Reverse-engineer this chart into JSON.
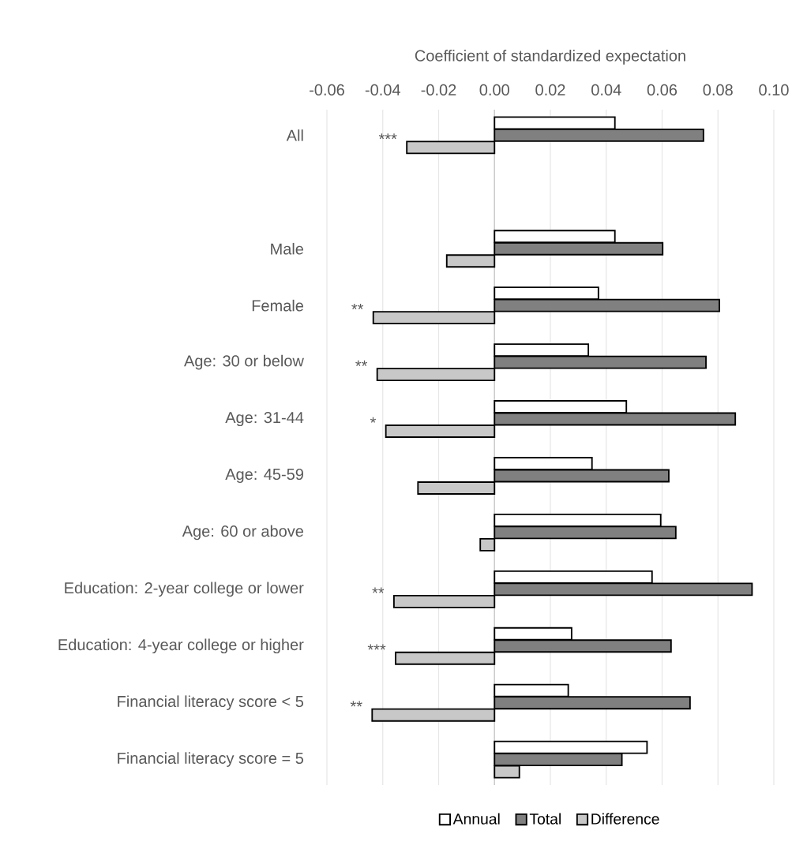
{
  "chart_data": {
    "type": "bar",
    "orientation": "horizontal",
    "xlabel": "Coefficient of standardized expectation",
    "categories": [
      "All",
      null,
      "Male",
      "Female",
      "Age: 30 or below",
      "Age: 31-44",
      "Age: 45-59",
      "Age: 60 or above",
      "Education: 2-year college or lower",
      "Education: 4-year college or higher",
      "Financial literacy score < 5",
      "Financial literacy score = 5"
    ],
    "series": [
      {
        "name": "Annual",
        "color": "#ffffff",
        "values": [
          0.0431,
          null,
          0.0431,
          0.0372,
          0.0336,
          0.0472,
          0.0349,
          0.0595,
          0.0564,
          0.0276,
          0.0264,
          0.0546
        ]
      },
      {
        "name": "Total",
        "color": "#808080",
        "values": [
          0.0748,
          null,
          0.0602,
          0.0805,
          0.0757,
          0.0862,
          0.0624,
          0.0649,
          0.0922,
          0.0632,
          0.07,
          0.0456
        ]
      },
      {
        "name": "Difference",
        "color": "#c8c8c8",
        "values": [
          -0.0314,
          null,
          -0.0171,
          -0.0434,
          -0.042,
          -0.0389,
          -0.0274,
          -0.0051,
          -0.036,
          -0.0354,
          -0.0438,
          0.0089
        ],
        "value_labels": [
          "***",
          null,
          null,
          "**",
          "**",
          "*",
          null,
          null,
          "**",
          "***",
          "**",
          null
        ]
      }
    ],
    "xlim": [
      -0.06,
      0.1
    ],
    "xticks": [
      {
        "value": -0.06,
        "label": "-0.06"
      },
      {
        "value": -0.04,
        "label": "-0.04"
      },
      {
        "value": -0.02,
        "label": "-0.02"
      },
      {
        "value": 0,
        "label": "0.00"
      },
      {
        "value": 0.02,
        "label": "0.02"
      },
      {
        "value": 0.04,
        "label": "0.04"
      },
      {
        "value": 0.06,
        "label": "0.06"
      },
      {
        "value": 0.08,
        "label": "0.08"
      },
      {
        "value": 0.1,
        "label": "0.10"
      }
    ],
    "grid": "x",
    "legend": "bottom"
  }
}
